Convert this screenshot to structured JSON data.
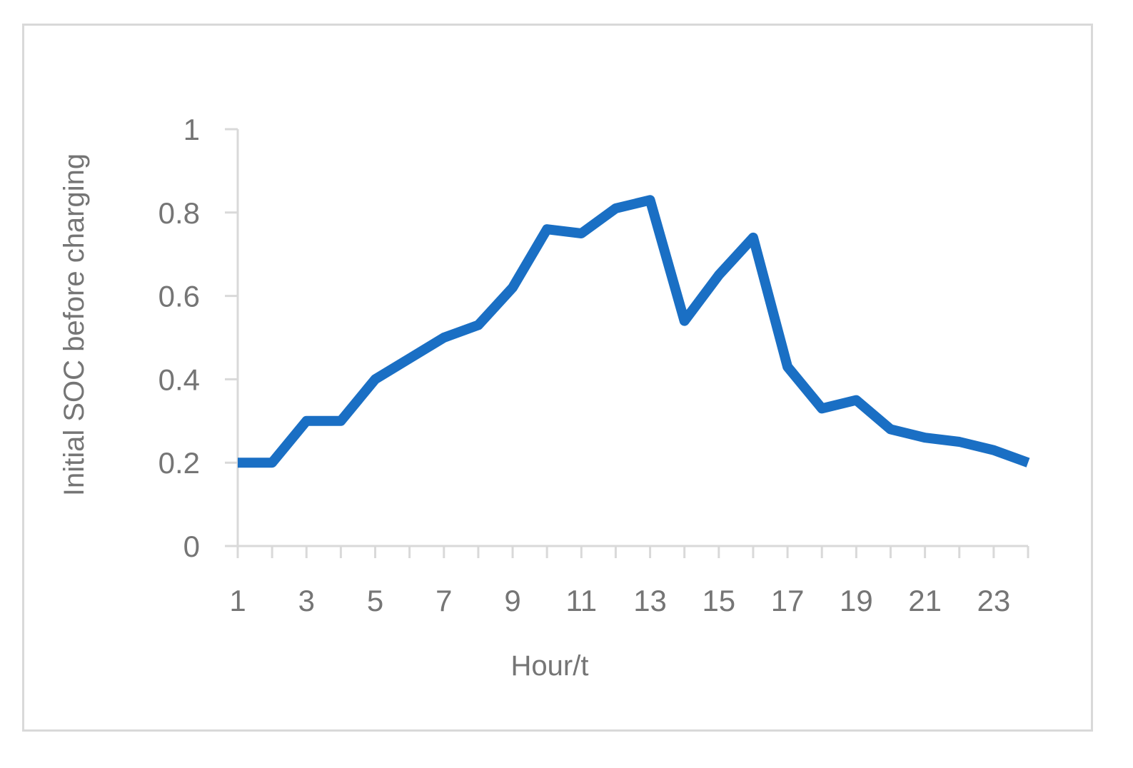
{
  "chart_data": {
    "type": "line",
    "xlabel": "Hour/t",
    "ylabel": "Initial SOC before charging",
    "x": [
      1,
      2,
      3,
      4,
      5,
      6,
      7,
      8,
      9,
      10,
      11,
      12,
      13,
      14,
      15,
      16,
      17,
      18,
      19,
      20,
      21,
      22,
      23,
      24
    ],
    "x_tick_labels": [
      "1",
      "3",
      "5",
      "7",
      "9",
      "11",
      "13",
      "15",
      "17",
      "19",
      "21",
      "23"
    ],
    "ylim": [
      0,
      1
    ],
    "y_ticks": [
      "0",
      "0.2",
      "0.4",
      "0.6",
      "0.8",
      "1"
    ],
    "series": [
      {
        "values": [
          0.2,
          0.2,
          0.3,
          0.3,
          0.4,
          0.45,
          0.5,
          0.53,
          0.62,
          0.76,
          0.75,
          0.81,
          0.83,
          0.54,
          0.65,
          0.74,
          0.43,
          0.33,
          0.35,
          0.28,
          0.26,
          0.25,
          0.23,
          0.2
        ],
        "color": "#1a6fc4"
      }
    ],
    "grid": false,
    "legend": "none"
  }
}
